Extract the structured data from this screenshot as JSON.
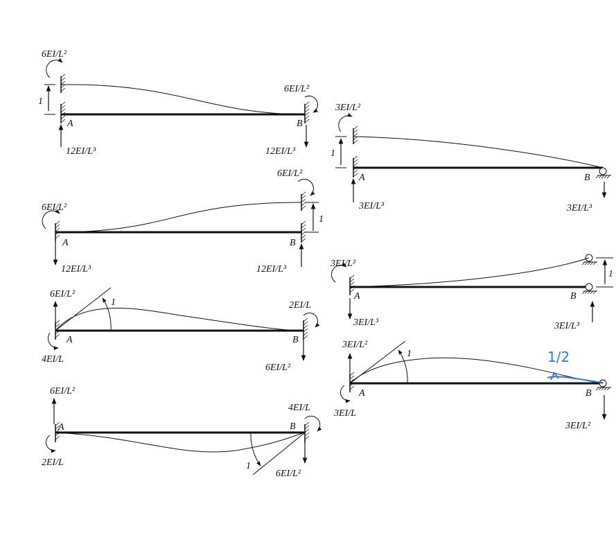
{
  "panels": [
    {
      "labels": [
        "6EI/L²",
        "1",
        "A",
        "B",
        "6EI/L²",
        "12EI/L³",
        "12EI/L³"
      ]
    },
    {
      "labels": [
        "6EI/L²",
        "6EI/L²",
        "1",
        "A",
        "B",
        "12EI/L³",
        "12EI/L³"
      ]
    },
    {
      "labels": [
        "6EI/L²",
        "1",
        "2EI/L",
        "A",
        "B",
        "4EI/L",
        "6EI/L²"
      ]
    },
    {
      "labels": [
        "6EI/L²",
        "A",
        "4EI/L",
        "B",
        "2EI/L",
        "1",
        "6EI/L²"
      ]
    },
    {
      "labels": [
        "3EI/L²",
        "1",
        "A",
        "B",
        "3EI/L³",
        "3EI/L³"
      ]
    },
    {
      "labels": [
        "3EI/L²",
        "1",
        "A",
        "B",
        "3EI/L³",
        "3EI/L³"
      ]
    },
    {
      "labels": [
        "3EI/L²",
        "1",
        "A",
        "B",
        "3EI/L",
        "3EI/L²"
      ],
      "annotation": "1/2"
    }
  ]
}
